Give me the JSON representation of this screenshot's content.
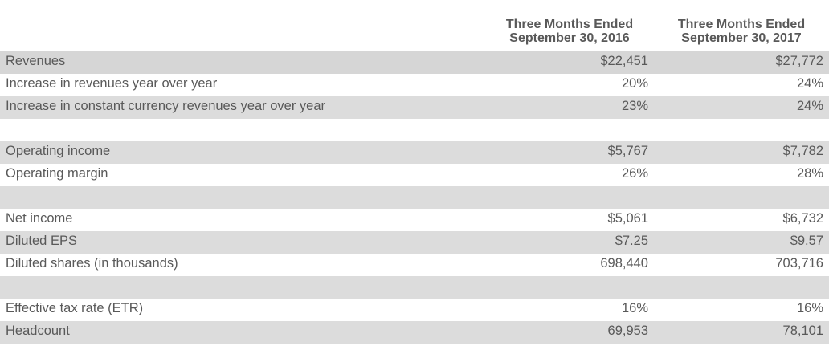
{
  "header": {
    "col1": "Three Months Ended\nSeptember 30, 2016",
    "col1_line1": "Three Months Ended",
    "col1_line2": "September 30, 2016",
    "col2_line1": "Three Months Ended",
    "col2_line2": "September 30, 2017"
  },
  "rows": [
    {
      "label": "Revenues",
      "v2016": "$22,451",
      "v2017": "$27,772"
    },
    {
      "label": "Increase in revenues year over year",
      "v2016": "20%",
      "v2017": "24%"
    },
    {
      "label": "Increase in constant currency revenues year over year",
      "v2016": "23%",
      "v2017": "24%"
    },
    {
      "label": "",
      "v2016": "",
      "v2017": ""
    },
    {
      "label": "Operating income",
      "v2016": "$5,767",
      "v2017": "$7,782"
    },
    {
      "label": "Operating margin",
      "v2016": "26%",
      "v2017": "28%"
    },
    {
      "label": "",
      "v2016": "",
      "v2017": ""
    },
    {
      "label": "Net income",
      "v2016": "$5,061",
      "v2017": "$6,732"
    },
    {
      "label": "Diluted EPS",
      "v2016": "$7.25",
      "v2017": "$9.57"
    },
    {
      "label": "Diluted shares (in thousands)",
      "v2016": "698,440",
      "v2017": "703,716"
    },
    {
      "label": "",
      "v2016": "",
      "v2017": ""
    },
    {
      "label": "Effective tax rate (ETR)",
      "v2016": "16%",
      "v2017": "16%"
    },
    {
      "label": "Headcount",
      "v2016": "69,953",
      "v2017": "78,101"
    }
  ]
}
